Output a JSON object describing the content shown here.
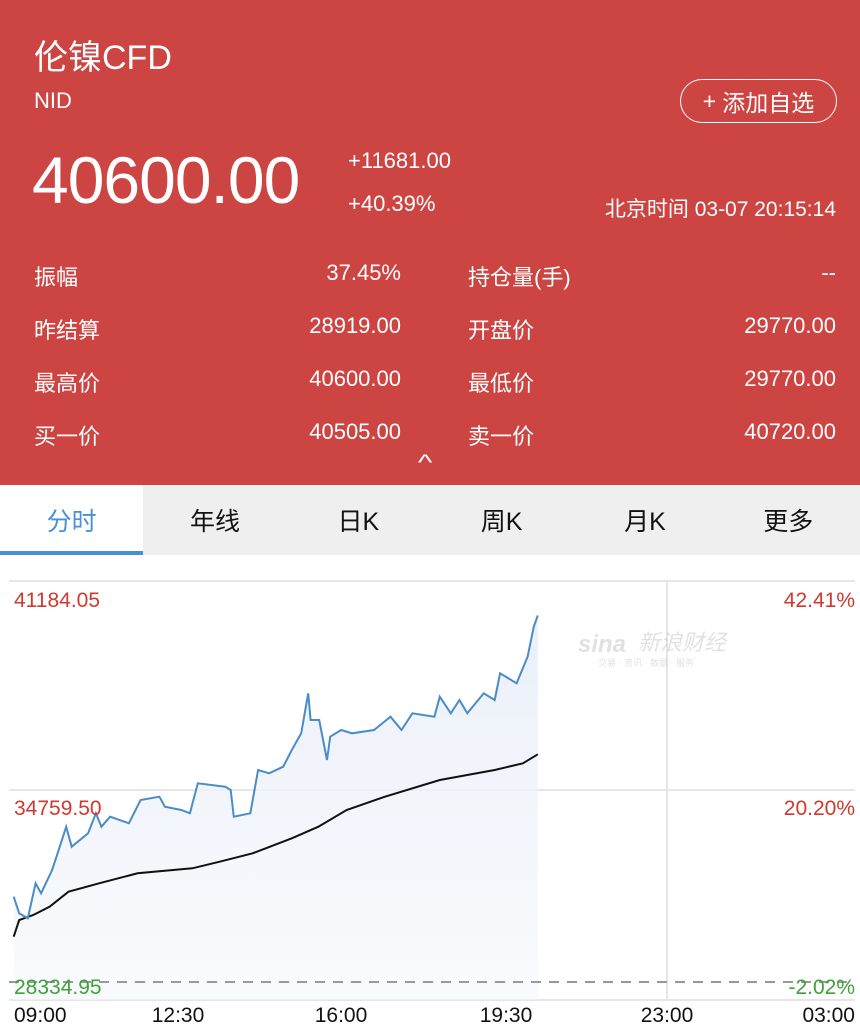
{
  "header": {
    "title": "伦镍CFD",
    "code": "NID",
    "add_button": "添加自选",
    "add_icon": "plus-icon",
    "price": "40600.00",
    "change": "+11681.00",
    "change_pct": "+40.39%",
    "time": "北京时间 03-07 20:15:14",
    "stats": [
      {
        "label": "振幅",
        "value": "37.45%",
        "label2": "持仓量(手)",
        "value2": "--"
      },
      {
        "label": "昨结算",
        "value": "28919.00",
        "label2": "开盘价",
        "value2": "29770.00"
      },
      {
        "label": "最高价",
        "value": "40600.00",
        "label2": "最低价",
        "value2": "29770.00"
      },
      {
        "label": "买一价",
        "value": "40505.00",
        "label2": "卖一价",
        "value2": "40720.00"
      }
    ],
    "collapse_icon": "chevron-up-icon"
  },
  "tabs": [
    {
      "label": "分时",
      "active": true
    },
    {
      "label": "年线"
    },
    {
      "label": "日K"
    },
    {
      "label": "周K"
    },
    {
      "label": "月K"
    },
    {
      "label": "更多"
    }
  ],
  "colors": {
    "header": "#cc4542",
    "accent": "#4a90d9",
    "up": "#d0392e",
    "down": "#3fa33a",
    "avg_line": "#111111"
  },
  "watermark": {
    "brand": "sina",
    "name": "新浪财经",
    "tagline": "交易 · 资讯 · 数据 · 服务"
  },
  "chart_data": {
    "type": "line",
    "x_ticks": [
      "09:00",
      "12:30",
      "16:00",
      "19:30",
      "23:00",
      "03:00"
    ],
    "xlim": [
      "09:00",
      "03:00"
    ],
    "y_left_ticks": [
      "41184.05",
      "34759.50",
      "28334.95"
    ],
    "y_right_ticks": [
      "42.41%",
      "20.20%",
      "-2.02%"
    ],
    "ylim": [
      28334.95,
      41184.05
    ],
    "reference": 34759.5,
    "series": [
      {
        "role": "price",
        "color": "#4a8cc8",
        "points": [
          [
            "09:06",
            31190
          ],
          [
            "09:13",
            30634
          ],
          [
            "09:24",
            30466
          ],
          [
            "09:34",
            31637
          ],
          [
            "09:41",
            31303
          ],
          [
            "09:55",
            32083
          ],
          [
            "10:02",
            32641
          ],
          [
            "10:13",
            33532
          ],
          [
            "10:20",
            32862
          ],
          [
            "10:41",
            33310
          ],
          [
            "10:51",
            33979
          ],
          [
            "10:58",
            33532
          ],
          [
            "11:09",
            33866
          ],
          [
            "11:33",
            33645
          ],
          [
            "11:48",
            34425
          ],
          [
            "12:12",
            34536
          ],
          [
            "12:19",
            34201
          ],
          [
            "12:40",
            34090
          ],
          [
            "12:51",
            33979
          ],
          [
            "13:01",
            34984
          ],
          [
            "13:36",
            34870
          ],
          [
            "13:43",
            34760
          ],
          [
            "13:47",
            33866
          ],
          [
            "14:08",
            33979
          ],
          [
            "14:18",
            35429
          ],
          [
            "14:32",
            35318
          ],
          [
            "14:50",
            35539
          ],
          [
            "15:01",
            36098
          ],
          [
            "15:13",
            36656
          ],
          [
            "15:22",
            37995
          ],
          [
            "15:25",
            37102
          ],
          [
            "15:36",
            37102
          ],
          [
            "15:46",
            35763
          ],
          [
            "15:50",
            36543
          ],
          [
            "16:04",
            36767
          ],
          [
            "16:18",
            36656
          ],
          [
            "16:46",
            36767
          ],
          [
            "17:07",
            37212
          ],
          [
            "17:21",
            36767
          ],
          [
            "17:35",
            37326
          ],
          [
            "18:03",
            37212
          ],
          [
            "18:10",
            37881
          ],
          [
            "18:24",
            37326
          ],
          [
            "18:35",
            37771
          ],
          [
            "18:45",
            37326
          ],
          [
            "19:06",
            37995
          ],
          [
            "19:20",
            37771
          ],
          [
            "19:27",
            38664
          ],
          [
            "19:48",
            38329
          ],
          [
            "20:02",
            39220
          ],
          [
            "20:10",
            40223
          ],
          [
            "20:15",
            40600
          ]
        ]
      },
      {
        "role": "average",
        "color": "#111111",
        "points": [
          [
            "09:06",
            29851
          ],
          [
            "09:13",
            30410
          ],
          [
            "09:31",
            30577
          ],
          [
            "09:52",
            30855
          ],
          [
            "10:16",
            31357
          ],
          [
            "10:55",
            31637
          ],
          [
            "11:44",
            31972
          ],
          [
            "12:54",
            32140
          ],
          [
            "13:29",
            32361
          ],
          [
            "14:11",
            32641
          ],
          [
            "15:01",
            33143
          ],
          [
            "15:35",
            33532
          ],
          [
            "16:11",
            34090
          ],
          [
            "17:00",
            34536
          ],
          [
            "18:10",
            35094
          ],
          [
            "19:20",
            35429
          ],
          [
            "19:56",
            35652
          ],
          [
            "20:15",
            35953
          ]
        ]
      }
    ]
  }
}
